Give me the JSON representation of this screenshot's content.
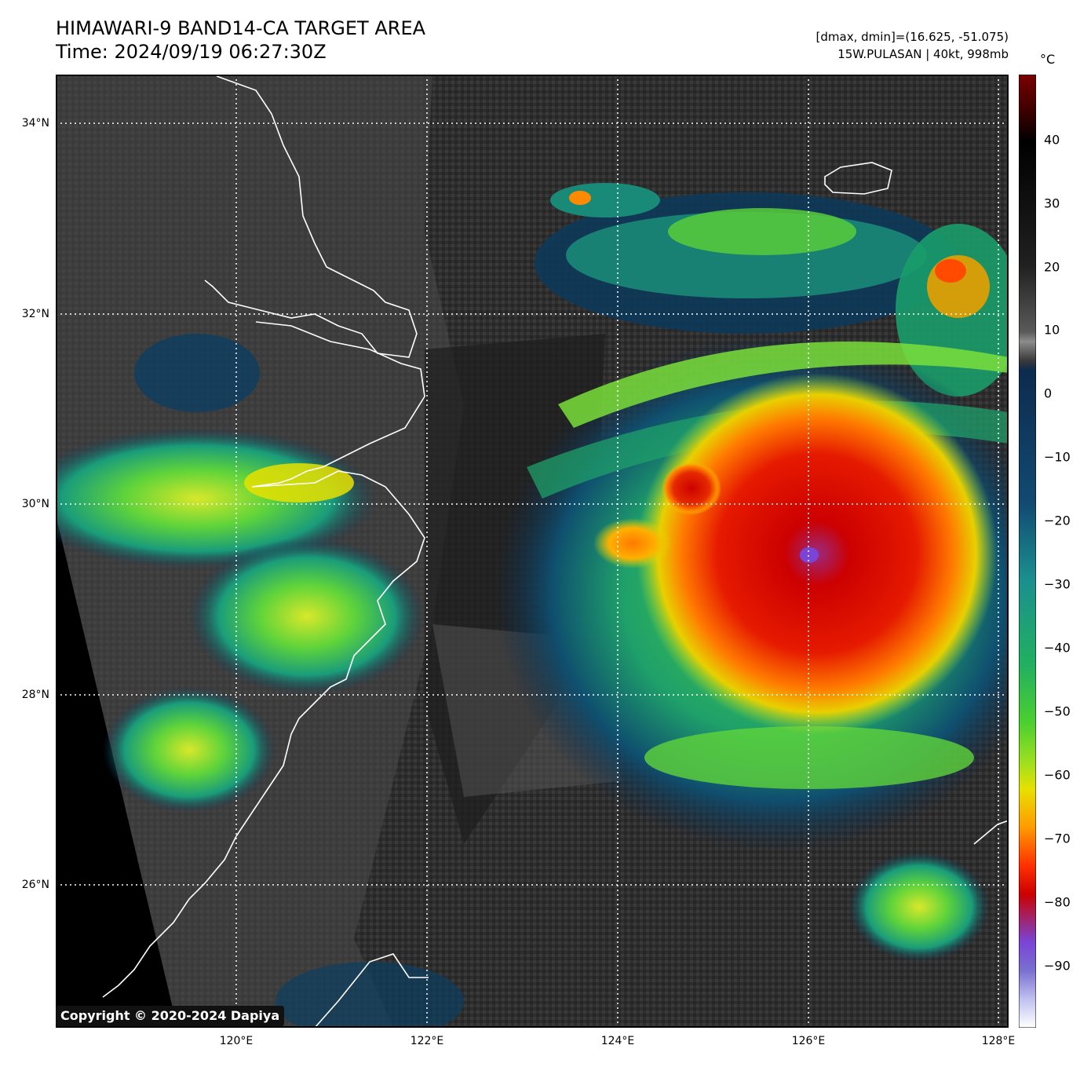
{
  "header": {
    "title": "HIMAWARI-9 BAND14-CA TARGET AREA",
    "time": "Time: 2024/09/19 06:27:30Z",
    "dmax_dmin": "[dmax, dmin]=(16.625, -51.075)",
    "storm": "15W.PULASAN | 40kt, 998mb"
  },
  "map": {
    "lat_ticks": [
      "34°N",
      "32°N",
      "30°N",
      "28°N",
      "26°N"
    ],
    "lon_ticks": [
      "120°E",
      "122°E",
      "124°E",
      "126°E",
      "128°E"
    ],
    "copyright": "Copyright © 2020-2024 Dapiya"
  },
  "colorbar": {
    "unit": "°C",
    "ticks": [
      "40",
      "30",
      "20",
      "10",
      "0",
      "−10",
      "−20",
      "−30",
      "−40",
      "−50",
      "−60",
      "−70",
      "−80",
      "−90"
    ],
    "colors": {
      "warm_top": "#7a0000",
      "black": "#000000",
      "grey": "#8c8c8c",
      "dark_blue": "#0d2b4d",
      "teal": "#1b8f8f",
      "green": "#2fbf3a",
      "yellow": "#e8e000",
      "orange": "#ff7a00",
      "red": "#cc0000",
      "purple": "#7a44d6",
      "white": "#ffffff"
    }
  }
}
